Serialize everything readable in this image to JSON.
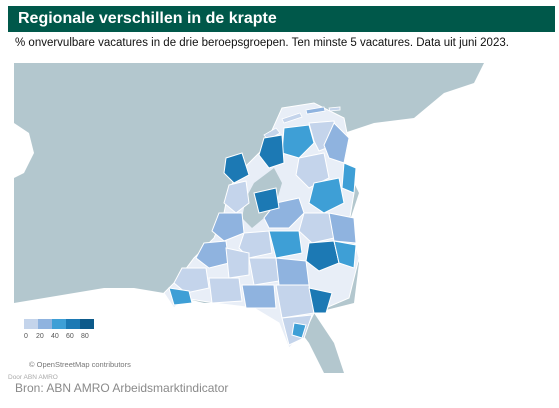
{
  "title": "Regionale verschillen in de krapte",
  "subtitle": "% onvervulbare vacatures in de drie beroepsgroepen. Ten minste 5 vacatures. Data uit juni 2023.",
  "legend": {
    "labels": [
      "0",
      "20",
      "40",
      "60",
      "80"
    ],
    "colors": [
      "#c4d4eb",
      "#8fb3df",
      "#3e9fd6",
      "#1c79b4",
      "#0d5a8a"
    ]
  },
  "attribution": "© OpenStreetMap contributors",
  "small_credit": "Door ABN AMRO",
  "source": "Bron: ABN AMRO Arbeidsmarktindicator",
  "colors": {
    "title_bar": "#00584a",
    "sea": "#b3c7ce",
    "land": "#ffffff",
    "region_light": "#c4d4eb",
    "region_mid": "#8fb3df",
    "region_dark": "#3e9fd6",
    "region_darker": "#1c79b4"
  }
}
